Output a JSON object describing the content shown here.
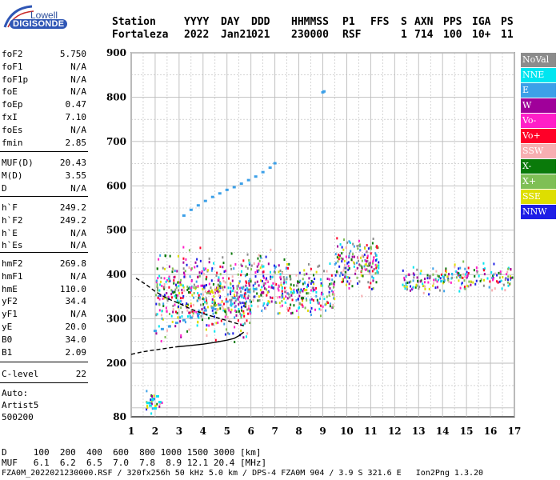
{
  "logo": {
    "brand": "Lowell",
    "name": "DIGISONDE"
  },
  "header": {
    "labels": [
      "Station",
      "YYYY",
      "DAY",
      "DDD",
      "HHMMSS",
      "P1",
      "FFS",
      "S",
      "AXN",
      "PPS",
      "IGA",
      "PS"
    ],
    "values": [
      "Fortaleza",
      "2022",
      "Jan21",
      "021",
      "230000",
      "RSF",
      "",
      "1",
      "714",
      "100",
      "10+",
      "11"
    ]
  },
  "params_group1": [
    {
      "name": "foF2",
      "value": "5.750"
    },
    {
      "name": "foF1",
      "value": "N/A"
    },
    {
      "name": "foF1p",
      "value": "N/A"
    },
    {
      "name": "foE",
      "value": "N/A"
    },
    {
      "name": "foEp",
      "value": "0.47"
    },
    {
      "name": "fxI",
      "value": "7.10"
    },
    {
      "name": "foEs",
      "value": "N/A"
    },
    {
      "name": "fmin",
      "value": "2.85"
    }
  ],
  "params_group2": [
    {
      "name": "MUF(D)",
      "value": "20.43"
    },
    {
      "name": "M(D)",
      "value": "3.55"
    },
    {
      "name": "D",
      "value": "N/A"
    }
  ],
  "params_group3": [
    {
      "name": "h`F",
      "value": "249.2"
    },
    {
      "name": "h`F2",
      "value": "249.2"
    },
    {
      "name": "h`E",
      "value": "N/A"
    },
    {
      "name": "h`Es",
      "value": "N/A"
    }
  ],
  "params_group4": [
    {
      "name": "hmF2",
      "value": "269.8"
    },
    {
      "name": "hmF1",
      "value": "N/A"
    },
    {
      "name": "hmE",
      "value": "110.0"
    },
    {
      "name": "yF2",
      "value": "34.4"
    },
    {
      "name": "yF1",
      "value": "N/A"
    },
    {
      "name": "yE",
      "value": "20.0"
    },
    {
      "name": "B0",
      "value": "34.0"
    },
    {
      "name": "B1",
      "value": "2.09"
    }
  ],
  "params_group5": [
    {
      "name": "C-level",
      "value": "22"
    }
  ],
  "autoscale": [
    "Auto:",
    "Artist5",
    "500200"
  ],
  "legend": [
    {
      "label": "NoVal",
      "color": "#8c8c8c"
    },
    {
      "label": "NNE",
      "color": "#00e5f0"
    },
    {
      "label": "E",
      "color": "#3ca0e8"
    },
    {
      "label": "W",
      "color": "#a0009a"
    },
    {
      "label": "Vo-",
      "color": "#ff1fc8"
    },
    {
      "label": "Vo+",
      "color": "#ff0028"
    },
    {
      "label": "SSW",
      "color": "#f7aeb1"
    },
    {
      "label": "X-",
      "color": "#0a7a0a"
    },
    {
      "label": "X+",
      "color": "#7fbf55"
    },
    {
      "label": "SSE",
      "color": "#dede00"
    },
    {
      "label": "NNW",
      "color": "#1e1ee6"
    }
  ],
  "footer": {
    "d_line": "D     100  200  400  600  800 1000 1500 3000 [km]",
    "muf_line": "MUF   6.1  6.2  6.5  7.0  7.8  8.9 12.1 20.4 [MHz]",
    "info_line": "FZA0M_2022021230000.RSF / 320fx256h 50 kHz 5.0 km / DPS-4 FZA0M 904 / 3.9 S 321.6 E   Ion2Png 1.3.20"
  },
  "chart_data": {
    "type": "scatter",
    "title": "",
    "xlabel": "",
    "ylabel": "",
    "xlim": [
      1,
      17
    ],
    "ylim": [
      80,
      900
    ],
    "x_ticks": [
      1,
      2,
      3,
      4,
      5,
      6,
      7,
      8,
      9,
      10,
      11,
      12,
      13,
      14,
      15,
      16,
      17
    ],
    "y_ticks": [
      80,
      200,
      300,
      400,
      500,
      600,
      700,
      800,
      900
    ],
    "grid": true,
    "series": [
      {
        "name": "E",
        "points": [
          [
            2.0,
            272
          ],
          [
            2.3,
            276
          ],
          [
            2.6,
            282
          ],
          [
            2.9,
            290
          ],
          [
            3.2,
            296
          ],
          [
            3.5,
            302
          ],
          [
            3.8,
            310
          ],
          [
            4.1,
            318
          ],
          [
            4.4,
            324
          ],
          [
            4.7,
            330
          ],
          [
            5.0,
            338
          ],
          [
            5.3,
            346
          ],
          [
            5.6,
            352
          ],
          [
            5.9,
            360
          ],
          [
            6.2,
            366
          ],
          [
            3.2,
            532
          ],
          [
            3.5,
            545
          ],
          [
            3.8,
            555
          ],
          [
            4.1,
            565
          ],
          [
            4.4,
            574
          ],
          [
            4.7,
            582
          ],
          [
            5.0,
            590
          ],
          [
            5.3,
            596
          ],
          [
            5.6,
            604
          ],
          [
            5.9,
            612
          ],
          [
            6.2,
            620
          ],
          [
            6.5,
            630
          ],
          [
            6.8,
            640
          ],
          [
            7.0,
            650
          ],
          [
            9.0,
            810
          ],
          [
            9.05,
            812
          ]
        ]
      },
      {
        "name": "NNE",
        "points": [
          [
            1.7,
            110
          ],
          [
            1.9,
            118
          ],
          [
            2.1,
            125
          ],
          [
            2.2,
            112
          ],
          [
            1.8,
            104
          ],
          [
            2.0,
            98
          ]
        ]
      }
    ],
    "curves": [
      {
        "name": "profile",
        "style": "solid",
        "points": [
          [
            2.9,
            237
          ],
          [
            3.5,
            240
          ],
          [
            4.0,
            243
          ],
          [
            4.5,
            247
          ],
          [
            5.0,
            252
          ],
          [
            5.3,
            256
          ],
          [
            5.5,
            262
          ],
          [
            5.7,
            270
          ]
        ]
      },
      {
        "name": "profile-lower",
        "style": "dashed",
        "points": [
          [
            1.0,
            220
          ],
          [
            1.5,
            226
          ],
          [
            2.0,
            230
          ],
          [
            2.5,
            234
          ],
          [
            2.9,
            237
          ]
        ]
      },
      {
        "name": "profile-upper",
        "style": "dashed",
        "points": [
          [
            1.2,
            392
          ],
          [
            1.6,
            378
          ],
          [
            2.0,
            362
          ],
          [
            2.5,
            346
          ],
          [
            3.0,
            335
          ],
          [
            3.5,
            322
          ],
          [
            4.0,
            312
          ],
          [
            4.5,
            304
          ],
          [
            5.0,
            296
          ],
          [
            5.5,
            288
          ],
          [
            5.7,
            284
          ]
        ]
      }
    ],
    "echo_regions": [
      {
        "x": [
          2.0,
          6.0
        ],
        "y": [
          230,
          480
        ]
      },
      {
        "x": [
          6.0,
          7.5
        ],
        "y": [
          290,
          470
        ]
      },
      {
        "x": [
          7.5,
          9.5
        ],
        "y": [
          290,
          440
        ]
      },
      {
        "x": [
          9.5,
          11.3
        ],
        "y": [
          340,
          520
        ]
      },
      {
        "x": [
          12.3,
          14.0
        ],
        "y": [
          345,
          430
        ]
      },
      {
        "x": [
          14.0,
          16.9
        ],
        "y": [
          355,
          435
        ]
      },
      {
        "x": [
          1.6,
          2.3
        ],
        "y": [
          80,
          150
        ]
      }
    ]
  }
}
